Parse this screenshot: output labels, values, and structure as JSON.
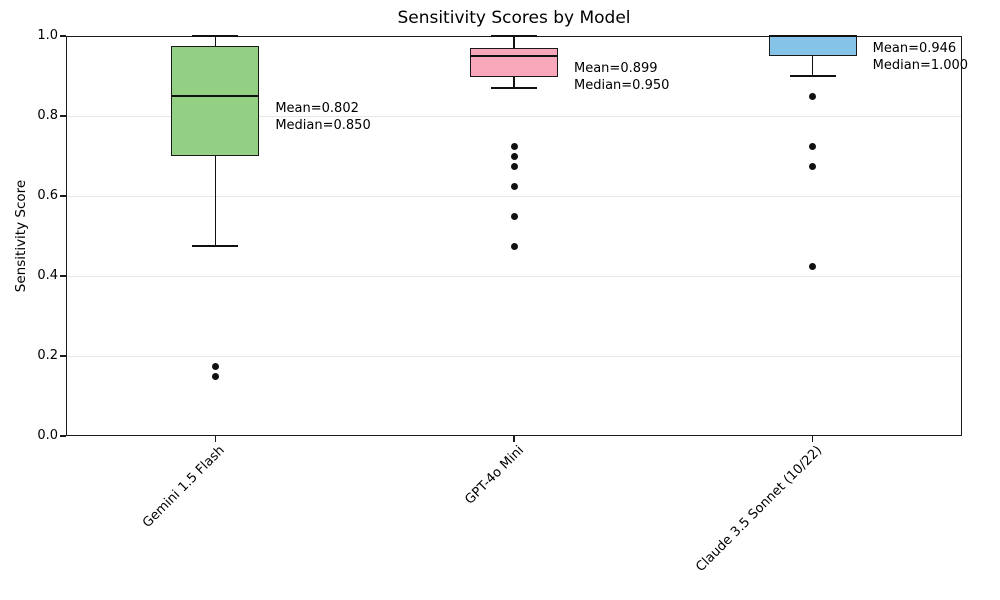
{
  "chart_data": {
    "type": "box",
    "title": "Sensitivity Scores by Model",
    "xlabel": "",
    "ylabel": "Sensitivity Score",
    "ylim": [
      0.0,
      1.0
    ],
    "yticks": [
      0.0,
      0.2,
      0.4,
      0.6,
      0.8,
      1.0
    ],
    "grid": true,
    "legend": "none",
    "categories": [
      "Gemini 1.5 Flash",
      "GPT-4o Mini",
      "Claude 3.5 Sonnet (10/22)"
    ],
    "series": [
      {
        "name": "Gemini 1.5 Flash",
        "color": "#94d083",
        "q1": 0.7,
        "median": 0.85,
        "q3": 0.975,
        "whisker_low": 0.475,
        "whisker_high": 1.0,
        "mean": 0.802,
        "outliers": [
          0.175,
          0.15
        ],
        "annotation": [
          "Mean=0.802",
          "Median=0.850"
        ]
      },
      {
        "name": "GPT-4o Mini",
        "color": "#f9a8bc",
        "q1": 0.898,
        "median": 0.95,
        "q3": 0.97,
        "whisker_low": 0.87,
        "whisker_high": 1.0,
        "mean": 0.899,
        "outliers": [
          0.725,
          0.7,
          0.675,
          0.625,
          0.55,
          0.475
        ],
        "annotation": [
          "Mean=0.899",
          "Median=0.950"
        ]
      },
      {
        "name": "Claude 3.5 Sonnet (10/22)",
        "color": "#85c3e8",
        "q1": 0.95,
        "median": 1.0,
        "q3": 1.0,
        "whisker_low": 0.9,
        "whisker_high": 1.0,
        "mean": 0.946,
        "outliers": [
          0.85,
          0.725,
          0.675,
          0.425
        ],
        "annotation": [
          "Mean=0.946",
          "Median=1.000"
        ]
      }
    ]
  },
  "colors": {
    "spine": "#1a1a1a",
    "gridline": "#e7e7e7",
    "outlier": "#111111",
    "background": "#ffffff"
  }
}
